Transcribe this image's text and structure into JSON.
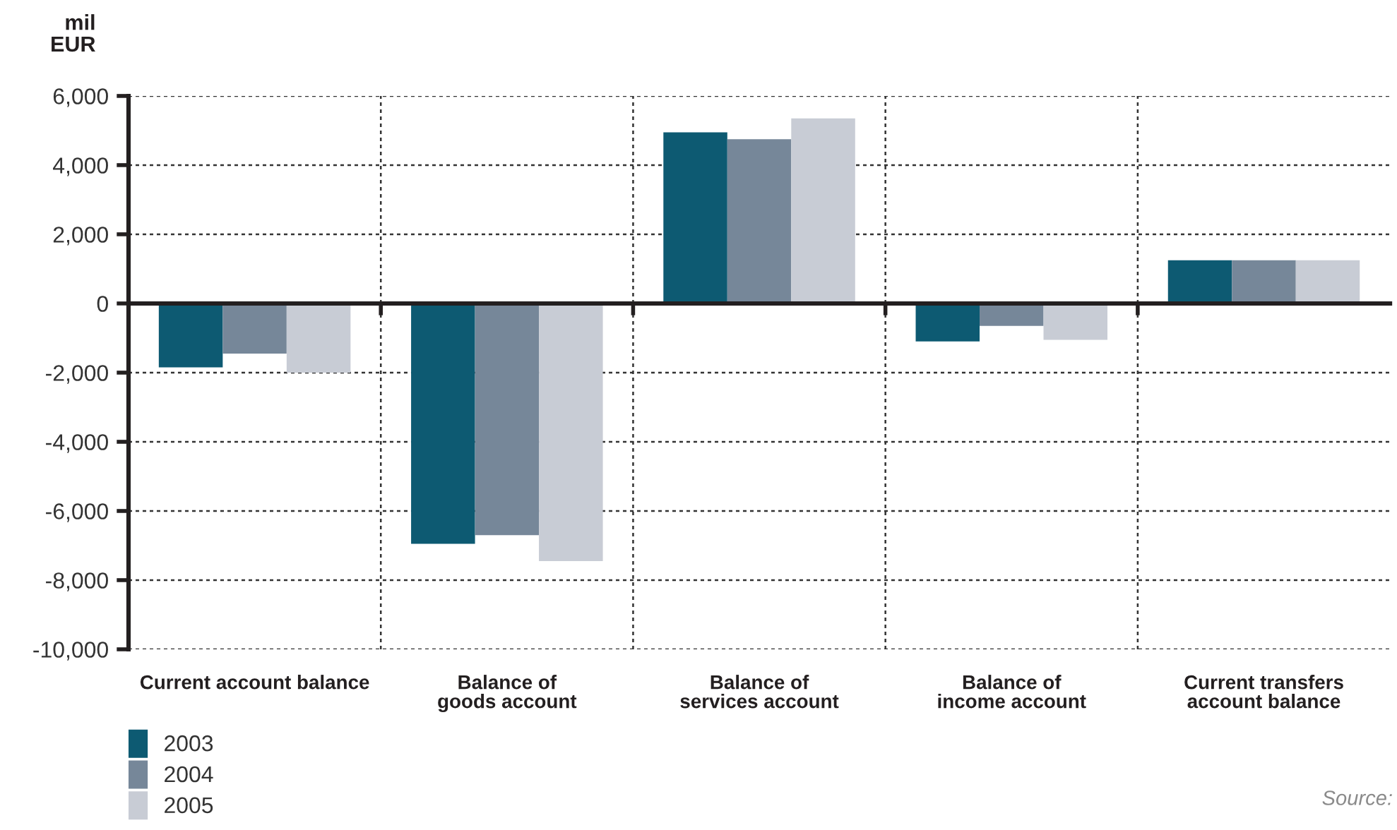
{
  "chart_data": {
    "type": "bar",
    "ylabel": "mil\nEUR",
    "categories": [
      "Current account balance",
      "Balance of\ngoods account",
      "Balance of\nservices account",
      "Balance of\nincome account",
      "Current transfers\naccount balance"
    ],
    "series": [
      {
        "name": "2003",
        "color": "#0d5a72",
        "values": [
          -1850,
          -6950,
          4950,
          -1100,
          1250
        ]
      },
      {
        "name": "2004",
        "color": "#768799",
        "values": [
          -1450,
          -6700,
          4750,
          -650,
          1250
        ]
      },
      {
        "name": "2005",
        "color": "#c8ccd5",
        "values": [
          -2000,
          -7450,
          5350,
          -1050,
          1250
        ]
      }
    ],
    "ylim": [
      -10000,
      6000
    ],
    "yticks": [
      {
        "value": -10000,
        "label": "-10,000"
      },
      {
        "value": -8000,
        "label": "-8,000"
      },
      {
        "value": -6000,
        "label": "-6,000"
      },
      {
        "value": -4000,
        "label": "-4,000"
      },
      {
        "value": -2000,
        "label": "-2,000"
      },
      0,
      {
        "value": 2000,
        "label": "2,000"
      },
      {
        "value": 4000,
        "label": "4,000"
      },
      {
        "value": 6000,
        "label": "6,000"
      }
    ],
    "grid": true,
    "legend": "bottom left",
    "annotations": [
      "Source:"
    ]
  }
}
